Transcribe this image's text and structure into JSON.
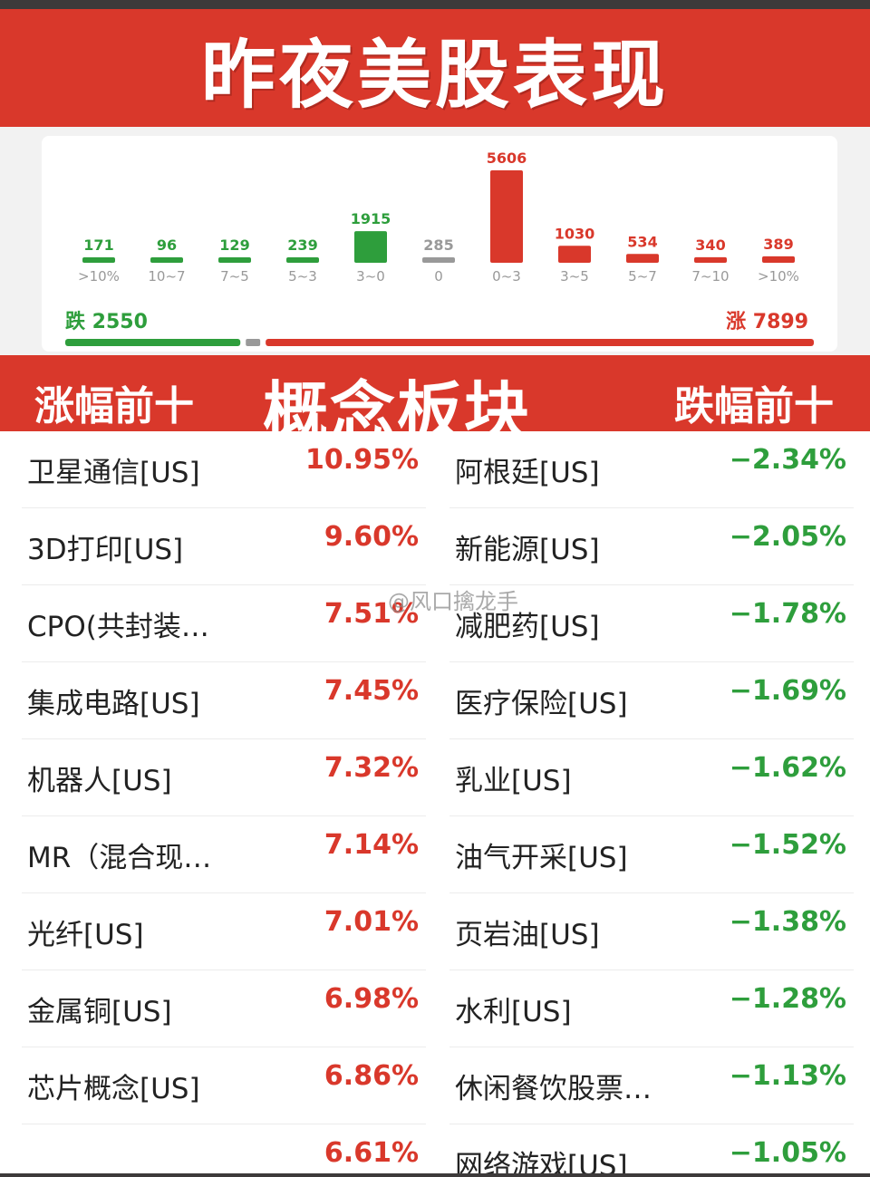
{
  "title": "昨夜美股表现",
  "chart_data": {
    "type": "bar",
    "categories": [
      ">10%",
      "10~7",
      "7~5",
      "5~3",
      "3~0",
      "0",
      "0~3",
      "3~5",
      "5~7",
      "7~10",
      ">10%"
    ],
    "values": [
      171,
      96,
      129,
      239,
      1915,
      285,
      5606,
      1030,
      534,
      340,
      389
    ],
    "colors": [
      "#2e9e3c",
      "#2e9e3c",
      "#2e9e3c",
      "#2e9e3c",
      "#2e9e3c",
      "#999999",
      "#d9382b",
      "#d9382b",
      "#d9382b",
      "#d9382b",
      "#d9382b"
    ],
    "value_labels": [
      "171",
      "96",
      "129",
      "239",
      "1915",
      "285",
      "5606",
      "1030",
      "534",
      "340",
      "389"
    ],
    "down_label": "跌",
    "down_total": 2550,
    "up_label": "涨",
    "up_total": 7899,
    "flat_total": 285
  },
  "section": {
    "left": "涨幅前十",
    "center": "概念板块",
    "right": "跌幅前十"
  },
  "gainers": [
    {
      "name": "卫星通信[US]",
      "pct": "10.95%"
    },
    {
      "name": "3D打印[US]",
      "pct": "9.60%"
    },
    {
      "name": "CPO(共封装…",
      "pct": "7.51%"
    },
    {
      "name": "集成电路[US]",
      "pct": "7.45%"
    },
    {
      "name": "机器人[US]",
      "pct": "7.32%"
    },
    {
      "name": "MR（混合现…",
      "pct": "7.14%"
    },
    {
      "name": "光纤[US]",
      "pct": "7.01%"
    },
    {
      "name": "金属铜[US]",
      "pct": "6.98%"
    },
    {
      "name": "芯片概念[US]",
      "pct": "6.86%"
    },
    {
      "name": "",
      "pct": "6.61%"
    }
  ],
  "losers": [
    {
      "name": "阿根廷[US]",
      "pct": "−2.34%"
    },
    {
      "name": "新能源[US]",
      "pct": "−2.05%"
    },
    {
      "name": "减肥药[US]",
      "pct": "−1.78%"
    },
    {
      "name": "医疗保险[US]",
      "pct": "−1.69%"
    },
    {
      "name": "乳业[US]",
      "pct": "−1.62%"
    },
    {
      "name": "油气开采[US]",
      "pct": "−1.52%"
    },
    {
      "name": "页岩油[US]",
      "pct": "−1.38%"
    },
    {
      "name": "水利[US]",
      "pct": "−1.28%"
    },
    {
      "name": "休闲餐饮股票…",
      "pct": "−1.13%"
    },
    {
      "name": "网络游戏[US]",
      "pct": "−1.05%"
    }
  ],
  "watermark": "@风口擒龙手"
}
